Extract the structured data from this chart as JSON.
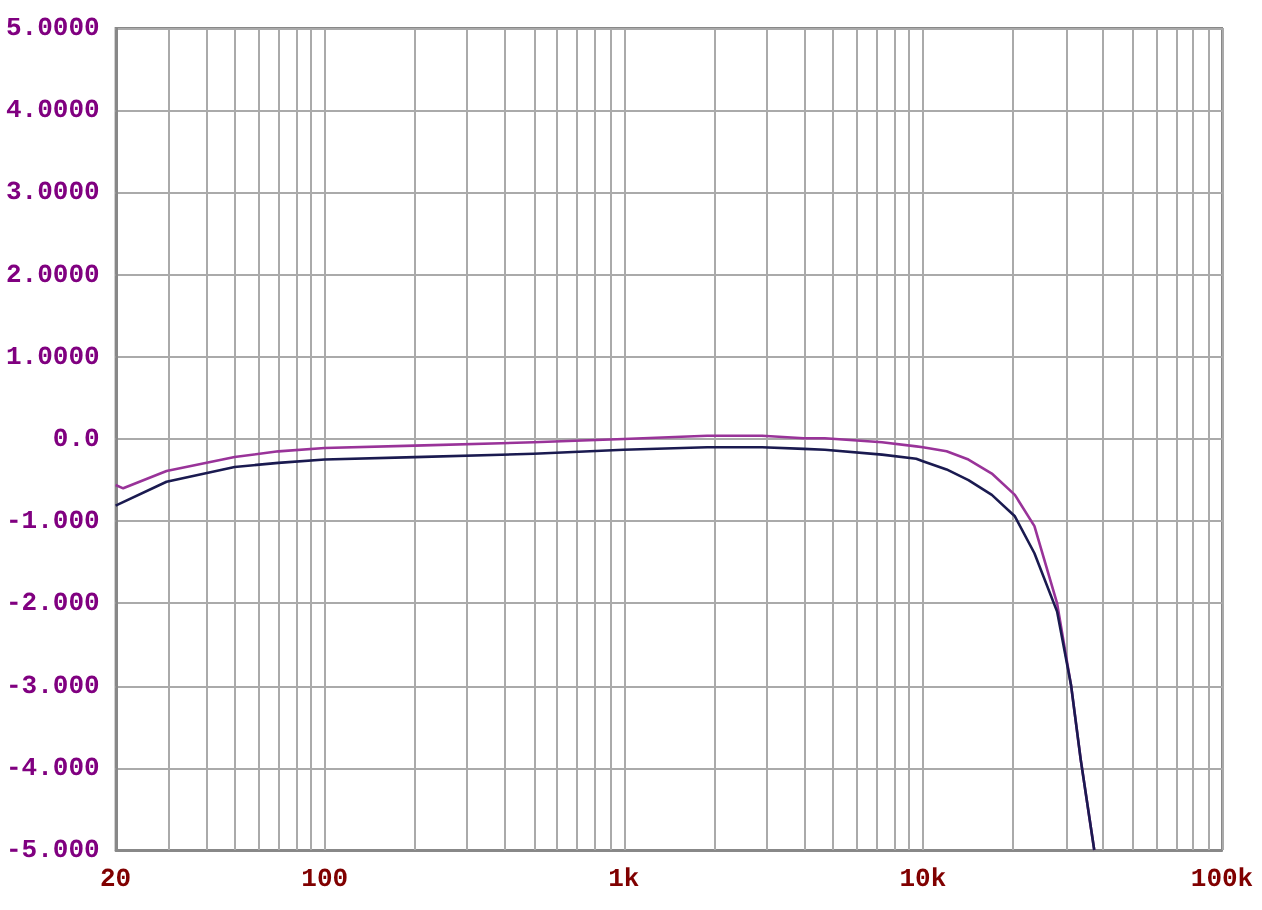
{
  "chart_data": {
    "type": "line",
    "log": "x",
    "grid": true,
    "marker": "none",
    "line_style": "solid",
    "xlim": [
      20,
      100000
    ],
    "ylim": [
      -5,
      5
    ],
    "xticks": [
      {
        "value": 20,
        "label": "20"
      },
      {
        "value": 30,
        "label": null
      },
      {
        "value": 40,
        "label": null
      },
      {
        "value": 50,
        "label": null
      },
      {
        "value": 60,
        "label": null
      },
      {
        "value": 70,
        "label": null
      },
      {
        "value": 80,
        "label": null
      },
      {
        "value": 90,
        "label": null
      },
      {
        "value": 100,
        "label": "100"
      },
      {
        "value": 200,
        "label": null
      },
      {
        "value": 300,
        "label": null
      },
      {
        "value": 400,
        "label": null
      },
      {
        "value": 500,
        "label": null
      },
      {
        "value": 600,
        "label": null
      },
      {
        "value": 700,
        "label": null
      },
      {
        "value": 800,
        "label": null
      },
      {
        "value": 900,
        "label": null
      },
      {
        "value": 1000,
        "label": "1k"
      },
      {
        "value": 2000,
        "label": null
      },
      {
        "value": 3000,
        "label": null
      },
      {
        "value": 4000,
        "label": null
      },
      {
        "value": 5000,
        "label": null
      },
      {
        "value": 6000,
        "label": null
      },
      {
        "value": 7000,
        "label": null
      },
      {
        "value": 8000,
        "label": null
      },
      {
        "value": 9000,
        "label": null
      },
      {
        "value": 10000,
        "label": "10k"
      },
      {
        "value": 20000,
        "label": null
      },
      {
        "value": 30000,
        "label": null
      },
      {
        "value": 40000,
        "label": null
      },
      {
        "value": 50000,
        "label": null
      },
      {
        "value": 60000,
        "label": null
      },
      {
        "value": 70000,
        "label": null
      },
      {
        "value": 80000,
        "label": null
      },
      {
        "value": 90000,
        "label": null
      },
      {
        "value": 100000,
        "label": "100k"
      }
    ],
    "yticks": [
      {
        "value": -5,
        "label": "-5.000"
      },
      {
        "value": -4,
        "label": "-4.000"
      },
      {
        "value": -3,
        "label": "-3.000"
      },
      {
        "value": -2,
        "label": "-2.000"
      },
      {
        "value": -1,
        "label": "-1.000"
      },
      {
        "value": 0,
        "label": "0.0"
      },
      {
        "value": 1,
        "label": "1.0000"
      },
      {
        "value": 2,
        "label": "2.0000"
      },
      {
        "value": 3,
        "label": "3.0000"
      },
      {
        "value": 4,
        "label": "4.0000"
      },
      {
        "value": 5,
        "label": "5.0000"
      }
    ],
    "series": [
      {
        "color": "#993399",
        "x": [
          20,
          21.2,
          29.6,
          50,
          70,
          100,
          200,
          500,
          1000,
          1900,
          2900,
          4000,
          4700,
          7300,
          9500,
          10000,
          12000,
          14200,
          17000,
          20300,
          23600,
          28100,
          31300,
          33700,
          37400
        ],
        "values": [
          -0.56,
          -0.6,
          -0.39,
          -0.22,
          -0.15,
          -0.11,
          -0.08,
          -0.04,
          0,
          0.04,
          0.04,
          0.01,
          0.01,
          -0.04,
          -0.09,
          -0.1,
          -0.15,
          -0.25,
          -0.42,
          -0.68,
          -1.06,
          -2,
          -3,
          -3.9,
          -5
        ]
      },
      {
        "color": "#1a1a50",
        "x": [
          20,
          29.6,
          50,
          70,
          100,
          200,
          500,
          1000,
          1900,
          2900,
          4000,
          4700,
          7300,
          9500,
          10000,
          12000,
          14200,
          17000,
          20300,
          23600,
          28100,
          31300,
          33700,
          37400
        ],
        "values": [
          -0.81,
          -0.52,
          -0.34,
          -0.29,
          -0.25,
          -0.22,
          -0.18,
          -0.13,
          -0.1,
          -0.1,
          -0.12,
          -0.13,
          -0.19,
          -0.24,
          -0.27,
          -0.37,
          -0.5,
          -0.68,
          -0.94,
          -1.39,
          -2.1,
          -3,
          -3.9,
          -5
        ]
      }
    ]
  }
}
